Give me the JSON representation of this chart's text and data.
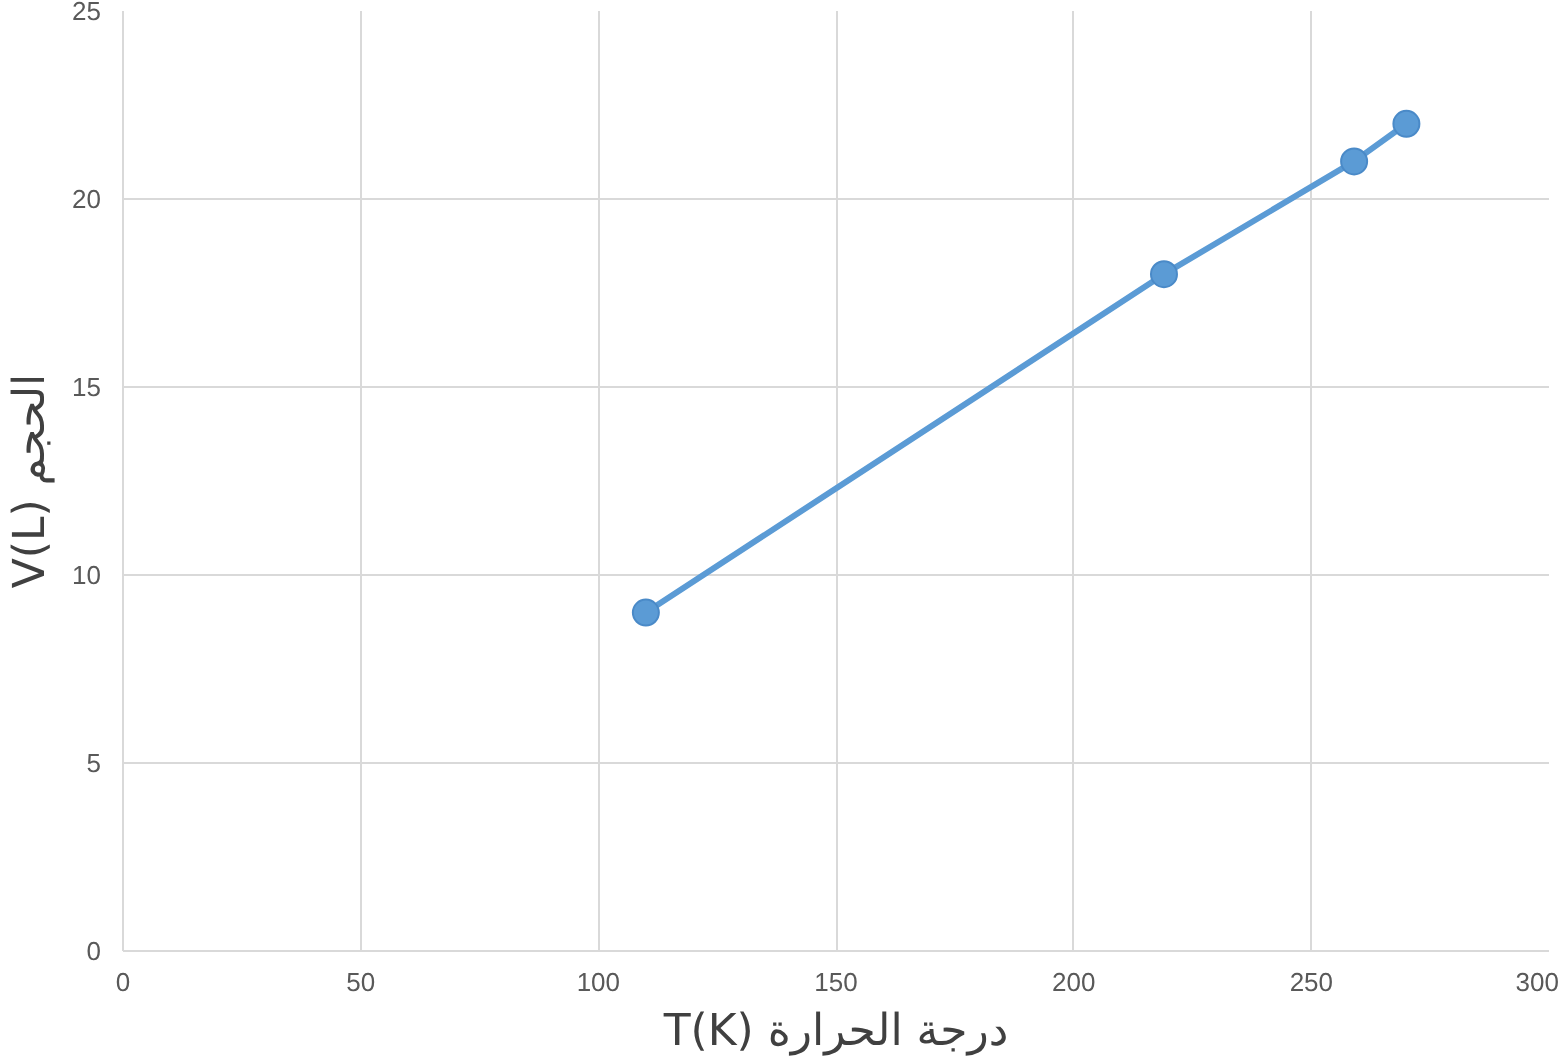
{
  "chart_data": {
    "type": "line",
    "xlabel": "T(K) درجة الحرارة",
    "ylabel": "V(L) الحجم",
    "x": [
      110,
      219,
      259,
      270
    ],
    "series": [
      {
        "color": "#5b9bd5",
        "values": [
          9,
          18,
          21,
          22
        ]
      }
    ],
    "xlim": [
      0,
      300
    ],
    "xticks": [
      0,
      50,
      100,
      150,
      200,
      250,
      300
    ],
    "ylim": [
      0,
      25
    ],
    "yticks": [
      0,
      5,
      10,
      15,
      20,
      25
    ],
    "grid": true,
    "marker": "circle",
    "line_style": "solid"
  }
}
